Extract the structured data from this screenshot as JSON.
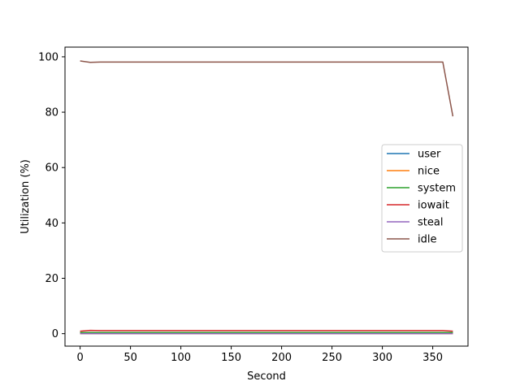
{
  "chart_data": {
    "type": "line",
    "title": "",
    "xlabel": "Second",
    "ylabel": "Utilization (%)",
    "xlim": [
      -15,
      385
    ],
    "ylim": [
      -4.5,
      103.5
    ],
    "xticks": [
      0,
      50,
      100,
      150,
      200,
      250,
      300,
      350
    ],
    "yticks": [
      0,
      20,
      40,
      60,
      80,
      100
    ],
    "grid": false,
    "legend_position": "center-right",
    "x": [
      0,
      10,
      20,
      30,
      40,
      50,
      60,
      70,
      80,
      90,
      100,
      110,
      120,
      130,
      140,
      150,
      160,
      170,
      180,
      190,
      200,
      210,
      220,
      230,
      240,
      250,
      260,
      270,
      280,
      290,
      300,
      310,
      320,
      330,
      340,
      350,
      360,
      370
    ],
    "series": [
      {
        "name": "user",
        "color": "#1f77b4",
        "values": [
          0.3,
          0.3,
          0.3,
          0.3,
          0.3,
          0.3,
          0.3,
          0.3,
          0.3,
          0.3,
          0.3,
          0.3,
          0.3,
          0.3,
          0.3,
          0.3,
          0.3,
          0.3,
          0.3,
          0.3,
          0.3,
          0.3,
          0.3,
          0.3,
          0.3,
          0.3,
          0.3,
          0.3,
          0.3,
          0.3,
          0.3,
          0.3,
          0.3,
          0.3,
          0.3,
          0.3,
          0.3,
          0.3
        ]
      },
      {
        "name": "nice",
        "color": "#ff7f0e",
        "values": [
          0,
          0,
          0,
          0,
          0,
          0,
          0,
          0,
          0,
          0,
          0,
          0,
          0,
          0,
          0,
          0,
          0,
          0,
          0,
          0,
          0,
          0,
          0,
          0,
          0,
          0,
          0,
          0,
          0,
          0,
          0,
          0,
          0,
          0,
          0,
          0,
          0,
          0
        ]
      },
      {
        "name": "system",
        "color": "#2ca02c",
        "values": [
          0.4,
          0.4,
          0.4,
          0.4,
          0.4,
          0.4,
          0.4,
          0.4,
          0.4,
          0.4,
          0.4,
          0.4,
          0.4,
          0.4,
          0.4,
          0.4,
          0.4,
          0.4,
          0.4,
          0.4,
          0.4,
          0.4,
          0.4,
          0.4,
          0.4,
          0.4,
          0.4,
          0.4,
          0.4,
          0.4,
          0.4,
          0.4,
          0.4,
          0.4,
          0.4,
          0.4,
          0.4,
          0.4
        ]
      },
      {
        "name": "iowait",
        "color": "#d62728",
        "values": [
          0.9,
          1.2,
          1.1,
          1.1,
          1.1,
          1.1,
          1.1,
          1.1,
          1.1,
          1.1,
          1.1,
          1.1,
          1.1,
          1.1,
          1.1,
          1.1,
          1.1,
          1.1,
          1.1,
          1.1,
          1.1,
          1.1,
          1.1,
          1.1,
          1.1,
          1.1,
          1.1,
          1.1,
          1.1,
          1.1,
          1.1,
          1.1,
          1.1,
          1.1,
          1.1,
          1.1,
          1.1,
          0.9
        ]
      },
      {
        "name": "steal",
        "color": "#9467bd",
        "values": [
          0,
          0,
          0,
          0,
          0,
          0,
          0,
          0,
          0,
          0,
          0,
          0,
          0,
          0,
          0,
          0,
          0,
          0,
          0,
          0,
          0,
          0,
          0,
          0,
          0,
          0,
          0,
          0,
          0,
          0,
          0,
          0,
          0,
          0,
          0,
          0,
          0,
          0
        ]
      },
      {
        "name": "idle",
        "color": "#8c564b",
        "values": [
          98.5,
          98.0,
          98.1,
          98.1,
          98.1,
          98.1,
          98.1,
          98.1,
          98.1,
          98.1,
          98.1,
          98.1,
          98.1,
          98.1,
          98.1,
          98.1,
          98.1,
          98.1,
          98.1,
          98.1,
          98.1,
          98.1,
          98.1,
          98.1,
          98.1,
          98.1,
          98.1,
          98.1,
          98.1,
          98.1,
          98.1,
          98.1,
          98.1,
          98.1,
          98.1,
          98.1,
          98.1,
          78.5
        ]
      }
    ]
  }
}
